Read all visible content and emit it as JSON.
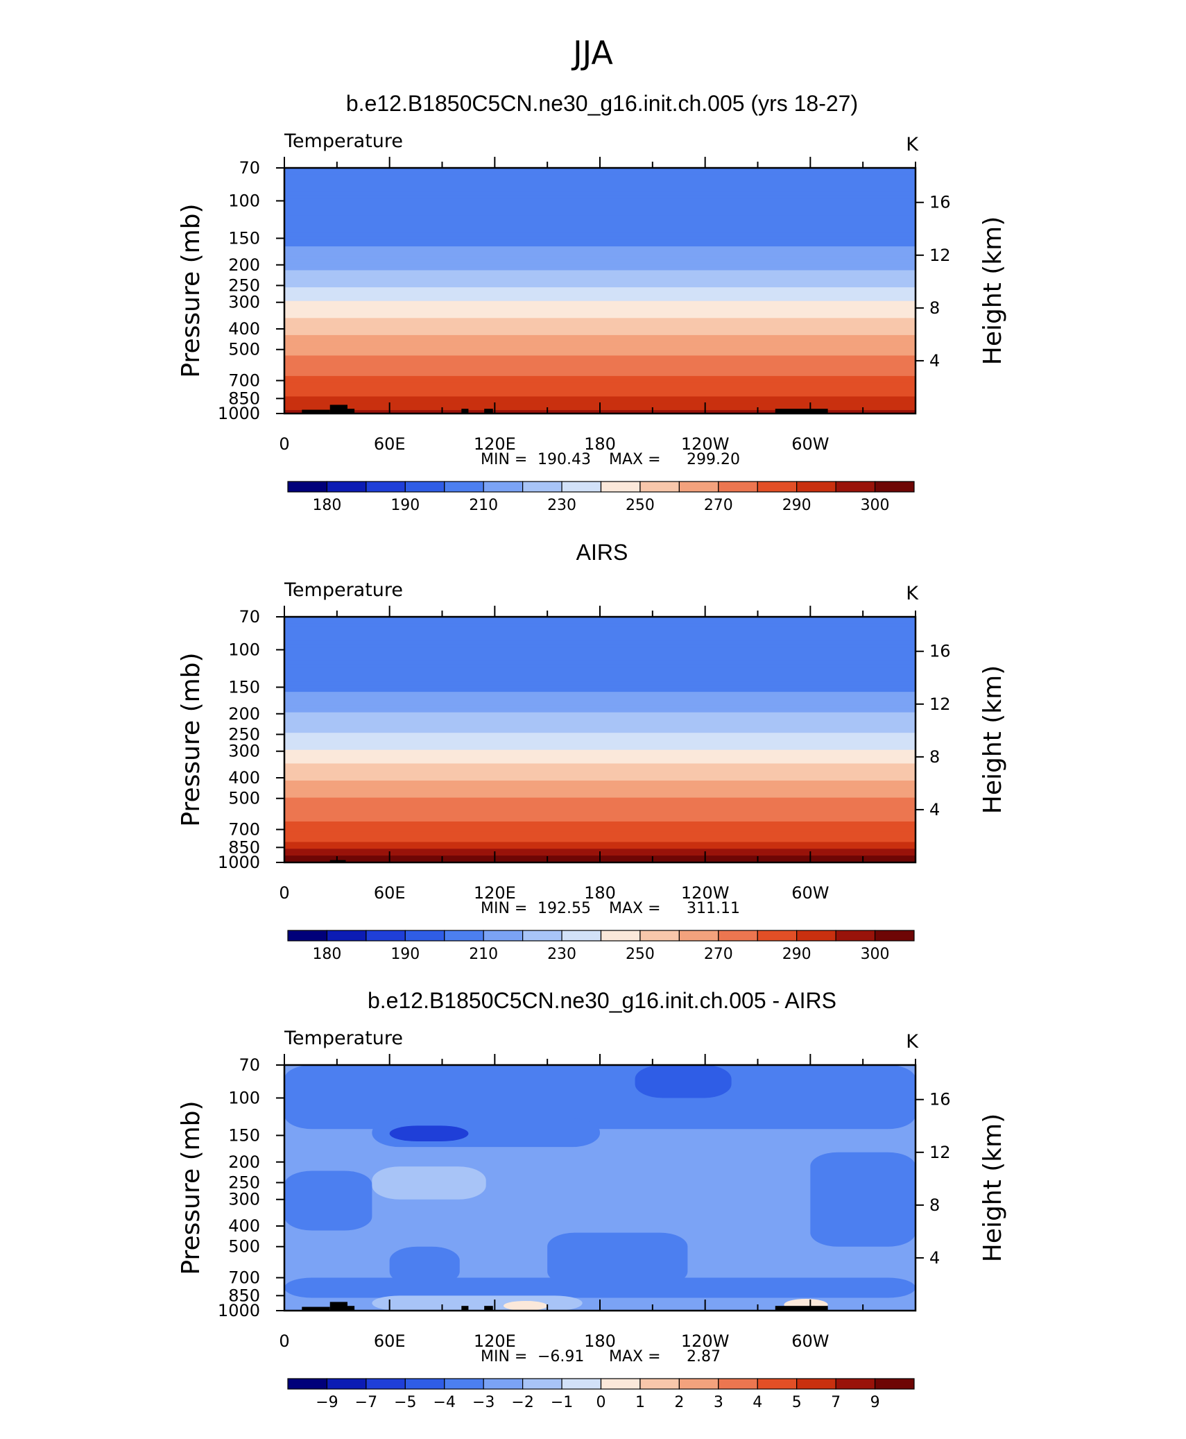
{
  "figure_title": "JJA",
  "colors": {
    "temp_levels": [
      "#00007a",
      "#0c1cb4",
      "#1f3fd8",
      "#2f5de6",
      "#4c7ff0",
      "#7ba3f5",
      "#a8c4f7",
      "#d2e1f8",
      "#fbe8da",
      "#f8c7ab",
      "#f3a27d",
      "#ec7650",
      "#e24f26",
      "#c9300f",
      "#99130a",
      "#6e0605"
    ],
    "diff_levels": [
      "#00007a",
      "#0c1cb4",
      "#1f3fd8",
      "#2f5de6",
      "#4c7ff0",
      "#7ba3f5",
      "#a8c4f7",
      "#d2e1f8",
      "#fbe8da",
      "#f8c7ab",
      "#f3a27d",
      "#ec7650",
      "#e24f26",
      "#c9300f",
      "#99130a",
      "#6e0605"
    ],
    "land": "#000000"
  },
  "chart_data": [
    {
      "type": "heatmap",
      "title": "b.e12.B1850C5CN.ne30_g16.init.ch.005 (yrs 18-27)",
      "left_string": "Temperature",
      "right_string": "K",
      "ylabel": "Pressure (mb)",
      "ylabel_right": "Height (km)",
      "x_ticks": [
        "0",
        "60E",
        "120E",
        "180",
        "120W",
        "60W"
      ],
      "y_ticks": [
        "70",
        "100",
        "150",
        "200",
        "250",
        "300",
        "400",
        "500",
        "700",
        "850",
        "1000"
      ],
      "y_ticks_right": [
        "16",
        "12",
        "8",
        "4"
      ],
      "stats": {
        "min_label": "MIN =",
        "min": "190.43",
        "max_label": "MAX =",
        "max": "299.20"
      },
      "colorbar_labels": [
        "180",
        "190",
        "210",
        "230",
        "250",
        "270",
        "290",
        "300"
      ],
      "profile": [
        {
          "pressure": 70,
          "temp": 203
        },
        {
          "pressure": 100,
          "temp": 203
        },
        {
          "pressure": 120,
          "temp": 203
        },
        {
          "pressure": 150,
          "temp": 207
        },
        {
          "pressure": 200,
          "temp": 218
        },
        {
          "pressure": 250,
          "temp": 228
        },
        {
          "pressure": 300,
          "temp": 240
        },
        {
          "pressure": 400,
          "temp": 256
        },
        {
          "pressure": 500,
          "temp": 268
        },
        {
          "pressure": 700,
          "temp": 282
        },
        {
          "pressure": 850,
          "temp": 291
        },
        {
          "pressure": 1000,
          "temp": 297
        }
      ],
      "land": [
        [
          10,
          26,
          960,
          1000
        ],
        [
          26,
          36,
          910,
          1000
        ],
        [
          36,
          40,
          950,
          1000
        ],
        [
          101,
          105,
          950,
          1000
        ],
        [
          114,
          119,
          950,
          1000
        ],
        [
          280,
          310,
          950,
          1000
        ]
      ]
    },
    {
      "type": "heatmap",
      "title": "AIRS",
      "left_string": "Temperature",
      "right_string": "K",
      "ylabel": "Pressure (mb)",
      "ylabel_right": "Height (km)",
      "x_ticks": [
        "0",
        "60E",
        "120E",
        "180",
        "120W",
        "60W"
      ],
      "y_ticks": [
        "70",
        "100",
        "150",
        "200",
        "250",
        "300",
        "400",
        "500",
        "700",
        "850",
        "1000"
      ],
      "y_ticks_right": [
        "16",
        "12",
        "8",
        "4"
      ],
      "stats": {
        "min_label": "MIN =",
        "min": "192.55",
        "max_label": "MAX =",
        "max": "311.11"
      },
      "colorbar_labels": [
        "180",
        "190",
        "210",
        "230",
        "250",
        "270",
        "290",
        "300"
      ],
      "profile": [
        {
          "pressure": 70,
          "temp": 208
        },
        {
          "pressure": 85,
          "temp": 203
        },
        {
          "pressure": 120,
          "temp": 203
        },
        {
          "pressure": 150,
          "temp": 208
        },
        {
          "pressure": 200,
          "temp": 220
        },
        {
          "pressure": 250,
          "temp": 230
        },
        {
          "pressure": 300,
          "temp": 242
        },
        {
          "pressure": 400,
          "temp": 258
        },
        {
          "pressure": 500,
          "temp": 270
        },
        {
          "pressure": 700,
          "temp": 284
        },
        {
          "pressure": 850,
          "temp": 293
        },
        {
          "pressure": 1000,
          "temp": 305
        }
      ],
      "land": [
        [
          26,
          35,
          975,
          1000
        ]
      ]
    },
    {
      "type": "heatmap",
      "title": "b.e12.B1850C5CN.ne30_g16.init.ch.005 - AIRS",
      "left_string": "Temperature",
      "right_string": "K",
      "ylabel": "Pressure (mb)",
      "ylabel_right": "Height (km)",
      "x_ticks": [
        "0",
        "60E",
        "120E",
        "180",
        "120W",
        "60W"
      ],
      "y_ticks": [
        "70",
        "100",
        "150",
        "200",
        "250",
        "300",
        "400",
        "500",
        "700",
        "850",
        "1000"
      ],
      "y_ticks_right": [
        "16",
        "12",
        "8",
        "4"
      ],
      "stats": {
        "min_label": "MIN =",
        "min": "−6.91",
        "max_label": "MAX =",
        "max": "2.87"
      },
      "colorbar_labels": [
        "−9",
        "−7",
        "−5",
        "−4",
        "−3",
        "−2",
        "−1",
        "0",
        "1",
        "2",
        "3",
        "4",
        "5",
        "7",
        "9"
      ],
      "background_value": -2.5,
      "blobs": [
        {
          "lon": [
            0,
            360
          ],
          "p": [
            70,
            140
          ],
          "value": -3.5
        },
        {
          "lon": [
            200,
            255
          ],
          "p": [
            70,
            100
          ],
          "value": -4.5
        },
        {
          "lon": [
            50,
            180
          ],
          "p": [
            125,
            170
          ],
          "value": -3.5
        },
        {
          "lon": [
            60,
            105
          ],
          "p": [
            135,
            160
          ],
          "value": -5.5
        },
        {
          "lon": [
            0,
            50
          ],
          "p": [
            220,
            420
          ],
          "value": -3.5
        },
        {
          "lon": [
            300,
            360
          ],
          "p": [
            180,
            500
          ],
          "value": -3.5
        },
        {
          "lon": [
            50,
            115
          ],
          "p": [
            210,
            300
          ],
          "value": -1.5
        },
        {
          "lon": [
            60,
            100
          ],
          "p": [
            500,
            760
          ],
          "value": -3.5
        },
        {
          "lon": [
            150,
            230
          ],
          "p": [
            430,
            760
          ],
          "value": -3.5
        },
        {
          "lon": [
            0,
            360
          ],
          "p": [
            700,
            870
          ],
          "value": -3.5
        },
        {
          "lon": [
            50,
            170
          ],
          "p": [
            850,
            1000
          ],
          "value": -1.5
        },
        {
          "lon": [
            125,
            150
          ],
          "p": [
            900,
            1000
          ],
          "value": 0.5
        },
        {
          "lon": [
            285,
            310
          ],
          "p": [
            880,
            1000
          ],
          "value": 0.5
        }
      ],
      "land": [
        [
          10,
          26,
          960,
          1000
        ],
        [
          26,
          36,
          910,
          1000
        ],
        [
          36,
          40,
          950,
          1000
        ],
        [
          101,
          105,
          950,
          1000
        ],
        [
          114,
          119,
          950,
          1000
        ],
        [
          280,
          310,
          950,
          1000
        ]
      ]
    }
  ]
}
